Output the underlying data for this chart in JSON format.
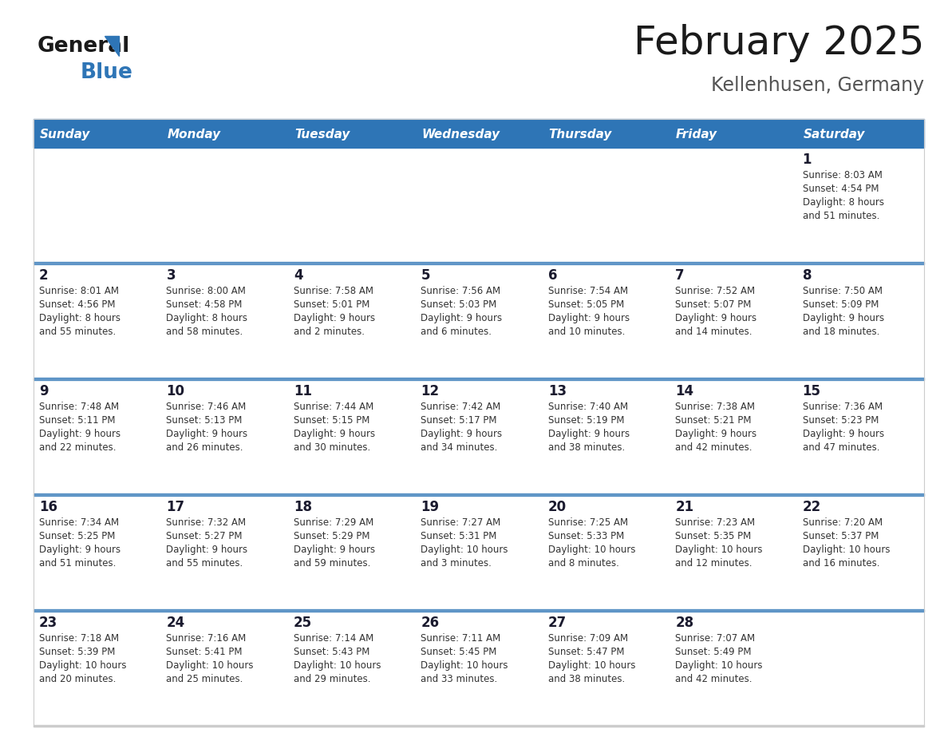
{
  "title": "February 2025",
  "subtitle": "Kellenhusen, Germany",
  "header_bg": "#2E75B6",
  "header_text_color": "#FFFFFF",
  "cell_bg": "#FFFFFF",
  "day_number_color": "#1a1a2e",
  "text_color": "#333333",
  "separator_color": "#2E75B6",
  "days_of_week": [
    "Sunday",
    "Monday",
    "Tuesday",
    "Wednesday",
    "Thursday",
    "Friday",
    "Saturday"
  ],
  "calendar_data": [
    [
      {
        "day": "",
        "info": ""
      },
      {
        "day": "",
        "info": ""
      },
      {
        "day": "",
        "info": ""
      },
      {
        "day": "",
        "info": ""
      },
      {
        "day": "",
        "info": ""
      },
      {
        "day": "",
        "info": ""
      },
      {
        "day": "1",
        "info": "Sunrise: 8:03 AM\nSunset: 4:54 PM\nDaylight: 8 hours\nand 51 minutes."
      }
    ],
    [
      {
        "day": "2",
        "info": "Sunrise: 8:01 AM\nSunset: 4:56 PM\nDaylight: 8 hours\nand 55 minutes."
      },
      {
        "day": "3",
        "info": "Sunrise: 8:00 AM\nSunset: 4:58 PM\nDaylight: 8 hours\nand 58 minutes."
      },
      {
        "day": "4",
        "info": "Sunrise: 7:58 AM\nSunset: 5:01 PM\nDaylight: 9 hours\nand 2 minutes."
      },
      {
        "day": "5",
        "info": "Sunrise: 7:56 AM\nSunset: 5:03 PM\nDaylight: 9 hours\nand 6 minutes."
      },
      {
        "day": "6",
        "info": "Sunrise: 7:54 AM\nSunset: 5:05 PM\nDaylight: 9 hours\nand 10 minutes."
      },
      {
        "day": "7",
        "info": "Sunrise: 7:52 AM\nSunset: 5:07 PM\nDaylight: 9 hours\nand 14 minutes."
      },
      {
        "day": "8",
        "info": "Sunrise: 7:50 AM\nSunset: 5:09 PM\nDaylight: 9 hours\nand 18 minutes."
      }
    ],
    [
      {
        "day": "9",
        "info": "Sunrise: 7:48 AM\nSunset: 5:11 PM\nDaylight: 9 hours\nand 22 minutes."
      },
      {
        "day": "10",
        "info": "Sunrise: 7:46 AM\nSunset: 5:13 PM\nDaylight: 9 hours\nand 26 minutes."
      },
      {
        "day": "11",
        "info": "Sunrise: 7:44 AM\nSunset: 5:15 PM\nDaylight: 9 hours\nand 30 minutes."
      },
      {
        "day": "12",
        "info": "Sunrise: 7:42 AM\nSunset: 5:17 PM\nDaylight: 9 hours\nand 34 minutes."
      },
      {
        "day": "13",
        "info": "Sunrise: 7:40 AM\nSunset: 5:19 PM\nDaylight: 9 hours\nand 38 minutes."
      },
      {
        "day": "14",
        "info": "Sunrise: 7:38 AM\nSunset: 5:21 PM\nDaylight: 9 hours\nand 42 minutes."
      },
      {
        "day": "15",
        "info": "Sunrise: 7:36 AM\nSunset: 5:23 PM\nDaylight: 9 hours\nand 47 minutes."
      }
    ],
    [
      {
        "day": "16",
        "info": "Sunrise: 7:34 AM\nSunset: 5:25 PM\nDaylight: 9 hours\nand 51 minutes."
      },
      {
        "day": "17",
        "info": "Sunrise: 7:32 AM\nSunset: 5:27 PM\nDaylight: 9 hours\nand 55 minutes."
      },
      {
        "day": "18",
        "info": "Sunrise: 7:29 AM\nSunset: 5:29 PM\nDaylight: 9 hours\nand 59 minutes."
      },
      {
        "day": "19",
        "info": "Sunrise: 7:27 AM\nSunset: 5:31 PM\nDaylight: 10 hours\nand 3 minutes."
      },
      {
        "day": "20",
        "info": "Sunrise: 7:25 AM\nSunset: 5:33 PM\nDaylight: 10 hours\nand 8 minutes."
      },
      {
        "day": "21",
        "info": "Sunrise: 7:23 AM\nSunset: 5:35 PM\nDaylight: 10 hours\nand 12 minutes."
      },
      {
        "day": "22",
        "info": "Sunrise: 7:20 AM\nSunset: 5:37 PM\nDaylight: 10 hours\nand 16 minutes."
      }
    ],
    [
      {
        "day": "23",
        "info": "Sunrise: 7:18 AM\nSunset: 5:39 PM\nDaylight: 10 hours\nand 20 minutes."
      },
      {
        "day": "24",
        "info": "Sunrise: 7:16 AM\nSunset: 5:41 PM\nDaylight: 10 hours\nand 25 minutes."
      },
      {
        "day": "25",
        "info": "Sunrise: 7:14 AM\nSunset: 5:43 PM\nDaylight: 10 hours\nand 29 minutes."
      },
      {
        "day": "26",
        "info": "Sunrise: 7:11 AM\nSunset: 5:45 PM\nDaylight: 10 hours\nand 33 minutes."
      },
      {
        "day": "27",
        "info": "Sunrise: 7:09 AM\nSunset: 5:47 PM\nDaylight: 10 hours\nand 38 minutes."
      },
      {
        "day": "28",
        "info": "Sunrise: 7:07 AM\nSunset: 5:49 PM\nDaylight: 10 hours\nand 42 minutes."
      },
      {
        "day": "",
        "info": ""
      }
    ]
  ]
}
